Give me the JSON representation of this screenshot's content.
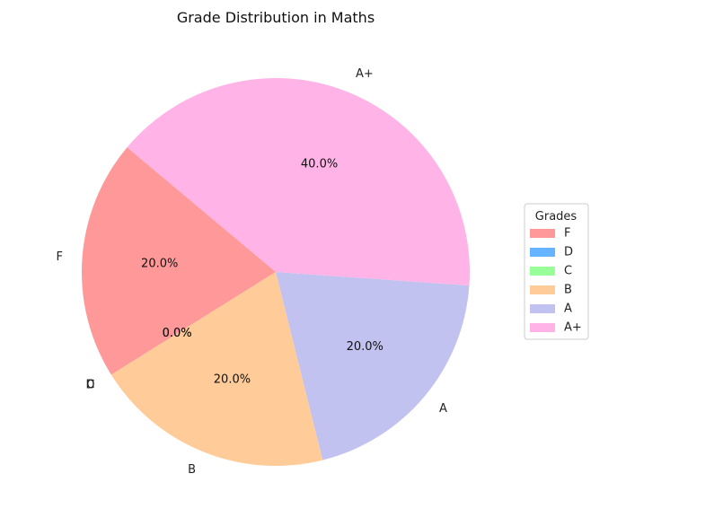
{
  "chart_data": {
    "type": "pie",
    "title": "Grade Distribution in Maths",
    "categories": [
      "F",
      "D",
      "C",
      "B",
      "A",
      "A+"
    ],
    "values": [
      20,
      0,
      0,
      20,
      20,
      40
    ],
    "percent_labels": [
      "20.0%",
      "0.0%",
      "0.0%",
      "20.0%",
      "20.0%",
      "40.0%"
    ],
    "colors": [
      "#ff9999",
      "#66b3ff",
      "#99ff99",
      "#ffcc99",
      "#c2c2f0",
      "#ffb3e6"
    ],
    "start_angle_deg": 140,
    "legend": {
      "title": "Grades",
      "placement": "center-right",
      "entries": [
        "F",
        "D",
        "C",
        "B",
        "A",
        "A+"
      ]
    }
  }
}
